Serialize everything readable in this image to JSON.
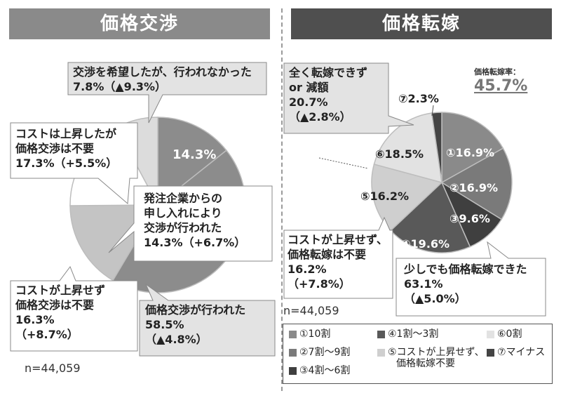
{
  "headers": {
    "left": "価格交渉",
    "right": "価格転嫁"
  },
  "left": {
    "callouts": {
      "not_held": [
        "交渉を希望したが、行われなかった",
        "7.8%（▲9.3%）"
      ],
      "unneeded_up": [
        "コストは上昇したが",
        "価格交渉は不要",
        "17.3%（+5.5%）"
      ],
      "from_buyer": [
        "発注企業からの",
        "申し入れにより",
        "交渉が行われた",
        "14.3%（+6.7%）"
      ],
      "unneeded_flat": [
        "コストが上昇せず",
        "価格交渉は不要",
        "16.3%",
        "（+8.7%）"
      ],
      "held": [
        "価格交渉が行われた",
        "58.5%",
        "（▲4.8%）"
      ]
    },
    "slice_label": "14.3%",
    "n": "n=44,059"
  },
  "right": {
    "rate_label": "価格転嫁率：",
    "rate_value": "45.7%",
    "callouts": {
      "none": [
        "全く転嫁できず",
        "or 減額",
        "20.7%",
        "（▲2.8%）"
      ],
      "minus": "⑦2.3%",
      "unneeded_flat": [
        "コストが上昇せず、",
        "価格転嫁は不要",
        "16.2%",
        "（+7.8%）"
      ],
      "some": [
        "少しでも価格転嫁できた",
        "63.1%",
        "（▲5.0%）"
      ]
    },
    "slice_labels": [
      "①16.9%",
      "②16.9%",
      "③9.6%",
      "④19.6%",
      "⑤16.2%",
      "⑥18.5%"
    ],
    "n": "n=44,059",
    "legend": [
      [
        "①10割"
      ],
      [
        "④1割～3割"
      ],
      [
        "⑥0割"
      ],
      [
        "②7割～9割"
      ],
      [
        "⑤コストが上昇せず、",
        "価格転嫁不要"
      ],
      [
        "⑦マイナス"
      ],
      [
        "③4割～6割"
      ]
    ]
  },
  "chart_data": [
    {
      "type": "pie",
      "title": "価格交渉",
      "labels": [
        "発注企業からの申し入れにより交渉が行われた",
        "価格交渉が行われた（その他）",
        "コストが上昇せず価格交渉は不要",
        "コストは上昇したが価格交渉は不要",
        "交渉を希望したが、行われなかった"
      ],
      "values": [
        14.3,
        44.2,
        16.3,
        17.3,
        7.8
      ],
      "colors": [
        "#8c8c8c",
        "#8c8c8c",
        "#c4c4c4",
        "#ffffff",
        "#dcdcdc"
      ]
    },
    {
      "type": "pie",
      "title": "価格転嫁",
      "labels": [
        "①10割",
        "②7割～9割",
        "③4割～6割",
        "④1割～3割",
        "⑤コストが上昇せず、価格転嫁不要",
        "⑥0割",
        "⑦マイナス"
      ],
      "values": [
        16.9,
        16.9,
        9.6,
        19.6,
        16.2,
        18.5,
        2.3
      ],
      "colors": [
        "#8a8a8a",
        "#7a7a7a",
        "#3f3f3f",
        "#595959",
        "#cfcfcf",
        "#e2e2e2",
        "#444444"
      ]
    }
  ]
}
